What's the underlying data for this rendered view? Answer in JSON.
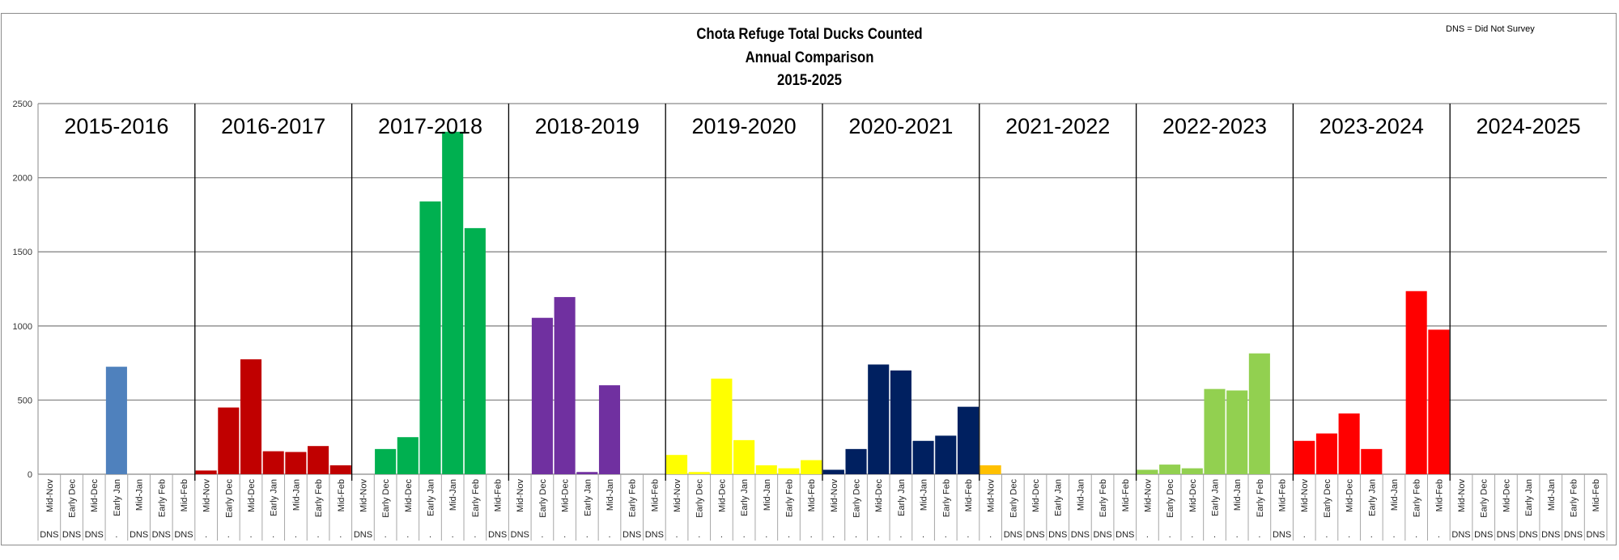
{
  "chart_data": {
    "type": "bar",
    "title": [
      "Chota Refuge Total Ducks Counted",
      "Annual Comparison",
      "2015-2025"
    ],
    "note": "DNS = Did Not Survey",
    "ylim": [
      0,
      2500
    ],
    "yticks": [
      0,
      500,
      1000,
      1500,
      2000,
      2500
    ],
    "grid": true,
    "legend": "none",
    "categories": [
      "Mid-Nov",
      "Early Dec",
      "Mid-Dec",
      "Early Jan",
      "Mid-Jan",
      "Early Feb",
      "Mid-Feb"
    ],
    "seasons": [
      {
        "label": "2015-2016",
        "color": "#4f81bd",
        "values": [
          null,
          null,
          null,
          725,
          null,
          null,
          null
        ],
        "status": [
          "DNS",
          "DNS",
          "DNS",
          ".",
          "DNS",
          "DNS",
          "DNS"
        ]
      },
      {
        "label": "2016-2017",
        "color": "#c00000",
        "values": [
          25,
          450,
          775,
          155,
          150,
          190,
          60
        ],
        "status": [
          ".",
          ".",
          ".",
          ".",
          ".",
          ".",
          "."
        ]
      },
      {
        "label": "2017-2018",
        "color": "#00b050",
        "values": [
          null,
          170,
          250,
          1840,
          2310,
          1660,
          null
        ],
        "status": [
          "DNS",
          ".",
          ".",
          ".",
          ".",
          ".",
          "DNS"
        ]
      },
      {
        "label": "2018-2019",
        "color": "#7030a0",
        "values": [
          null,
          1055,
          1195,
          15,
          600,
          null,
          null
        ],
        "status": [
          "DNS",
          ".",
          ".",
          ".",
          ".",
          "DNS",
          "DNS"
        ]
      },
      {
        "label": "2019-2020",
        "color": "#ffff00",
        "values": [
          130,
          15,
          645,
          230,
          60,
          40,
          95
        ],
        "status": [
          ".",
          ".",
          ".",
          ".",
          ".",
          ".",
          "."
        ]
      },
      {
        "label": "2020-2021",
        "color": "#002060",
        "values": [
          30,
          170,
          740,
          700,
          225,
          260,
          455
        ],
        "status": [
          ".",
          ".",
          ".",
          ".",
          ".",
          ".",
          "."
        ]
      },
      {
        "label": "2021-2022",
        "color": "#ffc000",
        "values": [
          60,
          null,
          null,
          null,
          null,
          null,
          null
        ],
        "status": [
          ".",
          "DNS",
          "DNS",
          "DNS",
          "DNS",
          "DNS",
          "DNS"
        ]
      },
      {
        "label": "2022-2023",
        "color": "#92d050",
        "values": [
          30,
          65,
          40,
          575,
          565,
          815,
          null
        ],
        "status": [
          ".",
          ".",
          ".",
          ".",
          ".",
          ".",
          "DNS"
        ]
      },
      {
        "label": "2023-2024",
        "color": "#ff0000",
        "values": [
          225,
          275,
          410,
          170,
          0,
          1235,
          975
        ],
        "status": [
          ".",
          ".",
          ".",
          ".",
          ".",
          ".",
          "."
        ]
      },
      {
        "label": "2024-2025",
        "color": "#ffffff",
        "values": [
          null,
          null,
          null,
          null,
          null,
          null,
          null
        ],
        "status": [
          "DNS",
          "DNS",
          "DNS",
          "DNS",
          "DNS",
          "DNS",
          "DNS"
        ]
      }
    ]
  }
}
